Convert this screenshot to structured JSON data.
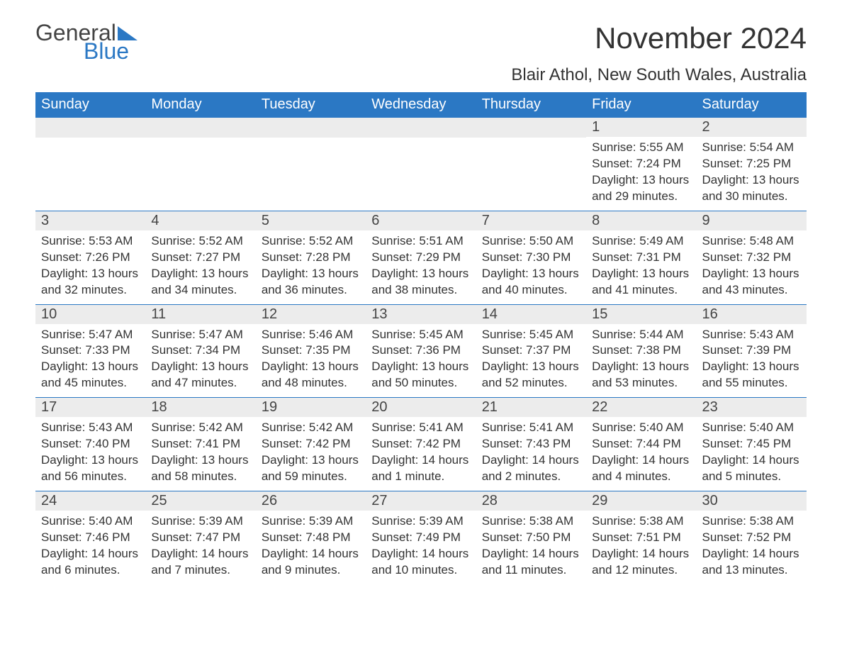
{
  "logo": {
    "general": "General",
    "blue": "Blue"
  },
  "title": "November 2024",
  "location": "Blair Athol, New South Wales, Australia",
  "colors": {
    "header_bg": "#2b78c4",
    "header_text": "#ffffff",
    "daynum_bg": "#ececec",
    "text": "#333333",
    "week_border": "#2b78c4",
    "background": "#ffffff"
  },
  "typography": {
    "title_fontsize": 42,
    "location_fontsize": 24,
    "dow_fontsize": 20,
    "daynum_fontsize": 20,
    "body_fontsize": 17
  },
  "dow": [
    "Sunday",
    "Monday",
    "Tuesday",
    "Wednesday",
    "Thursday",
    "Friday",
    "Saturday"
  ],
  "labels": {
    "sunrise": "Sunrise",
    "sunset": "Sunset",
    "daylight": "Daylight"
  },
  "weeks": [
    [
      null,
      null,
      null,
      null,
      null,
      {
        "n": "1",
        "sr": "5:55 AM",
        "ss": "7:24 PM",
        "dl": "13 hours and 29 minutes."
      },
      {
        "n": "2",
        "sr": "5:54 AM",
        "ss": "7:25 PM",
        "dl": "13 hours and 30 minutes."
      }
    ],
    [
      {
        "n": "3",
        "sr": "5:53 AM",
        "ss": "7:26 PM",
        "dl": "13 hours and 32 minutes."
      },
      {
        "n": "4",
        "sr": "5:52 AM",
        "ss": "7:27 PM",
        "dl": "13 hours and 34 minutes."
      },
      {
        "n": "5",
        "sr": "5:52 AM",
        "ss": "7:28 PM",
        "dl": "13 hours and 36 minutes."
      },
      {
        "n": "6",
        "sr": "5:51 AM",
        "ss": "7:29 PM",
        "dl": "13 hours and 38 minutes."
      },
      {
        "n": "7",
        "sr": "5:50 AM",
        "ss": "7:30 PM",
        "dl": "13 hours and 40 minutes."
      },
      {
        "n": "8",
        "sr": "5:49 AM",
        "ss": "7:31 PM",
        "dl": "13 hours and 41 minutes."
      },
      {
        "n": "9",
        "sr": "5:48 AM",
        "ss": "7:32 PM",
        "dl": "13 hours and 43 minutes."
      }
    ],
    [
      {
        "n": "10",
        "sr": "5:47 AM",
        "ss": "7:33 PM",
        "dl": "13 hours and 45 minutes."
      },
      {
        "n": "11",
        "sr": "5:47 AM",
        "ss": "7:34 PM",
        "dl": "13 hours and 47 minutes."
      },
      {
        "n": "12",
        "sr": "5:46 AM",
        "ss": "7:35 PM",
        "dl": "13 hours and 48 minutes."
      },
      {
        "n": "13",
        "sr": "5:45 AM",
        "ss": "7:36 PM",
        "dl": "13 hours and 50 minutes."
      },
      {
        "n": "14",
        "sr": "5:45 AM",
        "ss": "7:37 PM",
        "dl": "13 hours and 52 minutes."
      },
      {
        "n": "15",
        "sr": "5:44 AM",
        "ss": "7:38 PM",
        "dl": "13 hours and 53 minutes."
      },
      {
        "n": "16",
        "sr": "5:43 AM",
        "ss": "7:39 PM",
        "dl": "13 hours and 55 minutes."
      }
    ],
    [
      {
        "n": "17",
        "sr": "5:43 AM",
        "ss": "7:40 PM",
        "dl": "13 hours and 56 minutes."
      },
      {
        "n": "18",
        "sr": "5:42 AM",
        "ss": "7:41 PM",
        "dl": "13 hours and 58 minutes."
      },
      {
        "n": "19",
        "sr": "5:42 AM",
        "ss": "7:42 PM",
        "dl": "13 hours and 59 minutes."
      },
      {
        "n": "20",
        "sr": "5:41 AM",
        "ss": "7:42 PM",
        "dl": "14 hours and 1 minute."
      },
      {
        "n": "21",
        "sr": "5:41 AM",
        "ss": "7:43 PM",
        "dl": "14 hours and 2 minutes."
      },
      {
        "n": "22",
        "sr": "5:40 AM",
        "ss": "7:44 PM",
        "dl": "14 hours and 4 minutes."
      },
      {
        "n": "23",
        "sr": "5:40 AM",
        "ss": "7:45 PM",
        "dl": "14 hours and 5 minutes."
      }
    ],
    [
      {
        "n": "24",
        "sr": "5:40 AM",
        "ss": "7:46 PM",
        "dl": "14 hours and 6 minutes."
      },
      {
        "n": "25",
        "sr": "5:39 AM",
        "ss": "7:47 PM",
        "dl": "14 hours and 7 minutes."
      },
      {
        "n": "26",
        "sr": "5:39 AM",
        "ss": "7:48 PM",
        "dl": "14 hours and 9 minutes."
      },
      {
        "n": "27",
        "sr": "5:39 AM",
        "ss": "7:49 PM",
        "dl": "14 hours and 10 minutes."
      },
      {
        "n": "28",
        "sr": "5:38 AM",
        "ss": "7:50 PM",
        "dl": "14 hours and 11 minutes."
      },
      {
        "n": "29",
        "sr": "5:38 AM",
        "ss": "7:51 PM",
        "dl": "14 hours and 12 minutes."
      },
      {
        "n": "30",
        "sr": "5:38 AM",
        "ss": "7:52 PM",
        "dl": "14 hours and 13 minutes."
      }
    ]
  ]
}
